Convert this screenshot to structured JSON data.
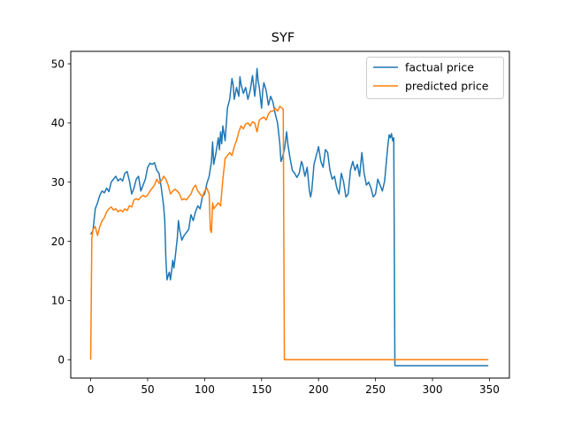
{
  "chart_data": {
    "type": "line",
    "title": "SYF",
    "xlabel": "",
    "ylabel": "",
    "xlim": [
      -17.5,
      367.5
    ],
    "ylim": [
      -3.1,
      52.1
    ],
    "xticks": [
      0,
      50,
      100,
      150,
      200,
      250,
      300,
      350
    ],
    "yticks": [
      0,
      10,
      20,
      30,
      40,
      50
    ],
    "grid": false,
    "legend_position": "top-right",
    "series": [
      {
        "name": "factual price",
        "color": "#1f77b4",
        "points": [
          [
            0,
            21.2
          ],
          [
            2,
            21.8
          ],
          [
            4,
            25.5
          ],
          [
            6,
            26.5
          ],
          [
            8,
            27.8
          ],
          [
            10,
            28.5
          ],
          [
            12,
            28.2
          ],
          [
            14,
            29.0
          ],
          [
            16,
            28.4
          ],
          [
            18,
            30.0
          ],
          [
            20,
            30.5
          ],
          [
            22,
            31.0
          ],
          [
            24,
            30.2
          ],
          [
            26,
            30.6
          ],
          [
            28,
            30.2
          ],
          [
            30,
            31.5
          ],
          [
            32,
            31.8
          ],
          [
            34,
            30.2
          ],
          [
            36,
            28.0
          ],
          [
            38,
            29.0
          ],
          [
            40,
            30.5
          ],
          [
            42,
            31.0
          ],
          [
            44,
            28.5
          ],
          [
            46,
            29.5
          ],
          [
            48,
            30.5
          ],
          [
            50,
            32.5
          ],
          [
            52,
            33.2
          ],
          [
            54,
            33.0
          ],
          [
            56,
            33.3
          ],
          [
            58,
            32.0
          ],
          [
            60,
            31.5
          ],
          [
            62,
            29.0
          ],
          [
            64,
            26.0
          ],
          [
            65,
            23.5
          ],
          [
            66,
            17.0
          ],
          [
            67,
            13.5
          ],
          [
            68,
            14.2
          ],
          [
            69,
            14.8
          ],
          [
            70,
            13.5
          ],
          [
            71,
            15.0
          ],
          [
            72,
            16.8
          ],
          [
            73,
            15.5
          ],
          [
            74,
            17.0
          ],
          [
            76,
            20.5
          ],
          [
            77,
            23.5
          ],
          [
            78,
            22.0
          ],
          [
            80,
            20.2
          ],
          [
            82,
            21.0
          ],
          [
            84,
            21.5
          ],
          [
            86,
            22.0
          ],
          [
            88,
            24.5
          ],
          [
            90,
            23.5
          ],
          [
            92,
            25.0
          ],
          [
            94,
            26.0
          ],
          [
            96,
            25.5
          ],
          [
            98,
            27.5
          ],
          [
            100,
            28.0
          ],
          [
            102,
            29.8
          ],
          [
            104,
            31.0
          ],
          [
            106,
            33.5
          ],
          [
            107,
            36.8
          ],
          [
            108,
            33.0
          ],
          [
            110,
            35.0
          ],
          [
            112,
            37.5
          ],
          [
            113,
            35.5
          ],
          [
            114,
            38.5
          ],
          [
            115,
            36.5
          ],
          [
            116,
            39.5
          ],
          [
            118,
            37.0
          ],
          [
            120,
            42.5
          ],
          [
            122,
            44.0
          ],
          [
            124,
            47.5
          ],
          [
            125,
            46.5
          ],
          [
            126,
            44.0
          ],
          [
            128,
            46.0
          ],
          [
            130,
            44.5
          ],
          [
            131,
            47.8
          ],
          [
            132,
            46.5
          ],
          [
            134,
            45.0
          ],
          [
            136,
            46.0
          ],
          [
            138,
            44.0
          ],
          [
            140,
            45.5
          ],
          [
            142,
            48.0
          ],
          [
            144,
            44.5
          ],
          [
            145,
            46.5
          ],
          [
            146,
            49.2
          ],
          [
            147,
            47.0
          ],
          [
            148,
            46.0
          ],
          [
            150,
            42.5
          ],
          [
            151,
            45.5
          ],
          [
            152,
            46.8
          ],
          [
            154,
            45.5
          ],
          [
            156,
            43.0
          ],
          [
            158,
            44.5
          ],
          [
            160,
            43.5
          ],
          [
            162,
            41.5
          ],
          [
            164,
            40.0
          ],
          [
            166,
            36.5
          ],
          [
            167,
            33.5
          ],
          [
            168,
            34.0
          ],
          [
            170,
            35.5
          ],
          [
            172,
            38.5
          ],
          [
            173,
            36.5
          ],
          [
            175,
            34.0
          ],
          [
            177,
            32.0
          ],
          [
            179,
            31.5
          ],
          [
            181,
            30.8
          ],
          [
            183,
            31.5
          ],
          [
            185,
            33.5
          ],
          [
            186,
            33.0
          ],
          [
            188,
            31.0
          ],
          [
            190,
            32.5
          ],
          [
            192,
            28.5
          ],
          [
            193,
            27.5
          ],
          [
            194,
            28.5
          ],
          [
            196,
            33.0
          ],
          [
            198,
            34.5
          ],
          [
            200,
            36.0
          ],
          [
            202,
            33.5
          ],
          [
            204,
            32.5
          ],
          [
            206,
            35.5
          ],
          [
            208,
            35.0
          ],
          [
            210,
            32.0
          ],
          [
            212,
            30.5
          ],
          [
            214,
            31.0
          ],
          [
            216,
            29.0
          ],
          [
            218,
            28.0
          ],
          [
            220,
            31.5
          ],
          [
            222,
            30.0
          ],
          [
            224,
            27.5
          ],
          [
            226,
            28.0
          ],
          [
            228,
            32.0
          ],
          [
            230,
            33.5
          ],
          [
            232,
            32.0
          ],
          [
            234,
            33.0
          ],
          [
            236,
            31.0
          ],
          [
            238,
            35.0
          ],
          [
            240,
            31.5
          ],
          [
            242,
            29.5
          ],
          [
            244,
            30.0
          ],
          [
            246,
            29.0
          ],
          [
            248,
            27.5
          ],
          [
            250,
            28.0
          ],
          [
            252,
            30.5
          ],
          [
            254,
            29.5
          ],
          [
            256,
            28.5
          ],
          [
            258,
            30.2
          ],
          [
            260,
            34.5
          ],
          [
            261,
            36.5
          ],
          [
            262,
            38.0
          ],
          [
            263,
            37.5
          ],
          [
            264,
            38.2
          ],
          [
            265,
            37.0
          ],
          [
            266,
            37.5
          ],
          [
            267,
            -1.0
          ],
          [
            349,
            -1.0
          ]
        ]
      },
      {
        "name": "predicted price",
        "color": "#ff7f0e",
        "points": [
          [
            0,
            0.0
          ],
          [
            1,
            20.5
          ],
          [
            2,
            22.0
          ],
          [
            4,
            22.5
          ],
          [
            6,
            21.0
          ],
          [
            8,
            22.5
          ],
          [
            10,
            23.5
          ],
          [
            12,
            24.0
          ],
          [
            14,
            25.0
          ],
          [
            16,
            25.5
          ],
          [
            18,
            25.8
          ],
          [
            20,
            25.3
          ],
          [
            22,
            25.5
          ],
          [
            24,
            25.0
          ],
          [
            26,
            25.3
          ],
          [
            28,
            25.0
          ],
          [
            30,
            25.5
          ],
          [
            32,
            25.2
          ],
          [
            34,
            26.0
          ],
          [
            36,
            25.8
          ],
          [
            38,
            27.0
          ],
          [
            40,
            27.2
          ],
          [
            42,
            27.0
          ],
          [
            44,
            27.5
          ],
          [
            46,
            27.8
          ],
          [
            48,
            27.5
          ],
          [
            50,
            27.8
          ],
          [
            52,
            28.5
          ],
          [
            54,
            29.0
          ],
          [
            56,
            29.5
          ],
          [
            58,
            30.5
          ],
          [
            60,
            29.8
          ],
          [
            62,
            30.2
          ],
          [
            64,
            31.0
          ],
          [
            66,
            30.5
          ],
          [
            68,
            29.5
          ],
          [
            70,
            28.0
          ],
          [
            72,
            28.5
          ],
          [
            74,
            28.8
          ],
          [
            76,
            28.5
          ],
          [
            78,
            28.0
          ],
          [
            80,
            27.0
          ],
          [
            82,
            27.2
          ],
          [
            84,
            27.0
          ],
          [
            86,
            27.5
          ],
          [
            88,
            28.0
          ],
          [
            90,
            29.0
          ],
          [
            92,
            29.5
          ],
          [
            94,
            28.5
          ],
          [
            96,
            28.0
          ],
          [
            98,
            27.5
          ],
          [
            100,
            28.5
          ],
          [
            102,
            29.0
          ],
          [
            104,
            28.0
          ],
          [
            105,
            22.0
          ],
          [
            106,
            21.5
          ],
          [
            107,
            26.5
          ],
          [
            108,
            25.5
          ],
          [
            110,
            26.0
          ],
          [
            112,
            26.5
          ],
          [
            114,
            26.0
          ],
          [
            116,
            30.5
          ],
          [
            118,
            34.0
          ],
          [
            120,
            34.5
          ],
          [
            122,
            35.0
          ],
          [
            124,
            34.5
          ],
          [
            126,
            36.0
          ],
          [
            128,
            37.0
          ],
          [
            130,
            38.5
          ],
          [
            132,
            39.5
          ],
          [
            134,
            39.0
          ],
          [
            136,
            39.8
          ],
          [
            138,
            40.0
          ],
          [
            140,
            39.5
          ],
          [
            142,
            40.2
          ],
          [
            144,
            40.0
          ],
          [
            146,
            38.5
          ],
          [
            148,
            40.5
          ],
          [
            150,
            40.8
          ],
          [
            152,
            41.0
          ],
          [
            154,
            40.5
          ],
          [
            156,
            41.5
          ],
          [
            158,
            42.0
          ],
          [
            160,
            42.0
          ],
          [
            162,
            42.5
          ],
          [
            164,
            42.0
          ],
          [
            166,
            42.8
          ],
          [
            168,
            42.5
          ],
          [
            169,
            42.3
          ],
          [
            170,
            0.0
          ],
          [
            349,
            0.0
          ]
        ]
      }
    ]
  }
}
